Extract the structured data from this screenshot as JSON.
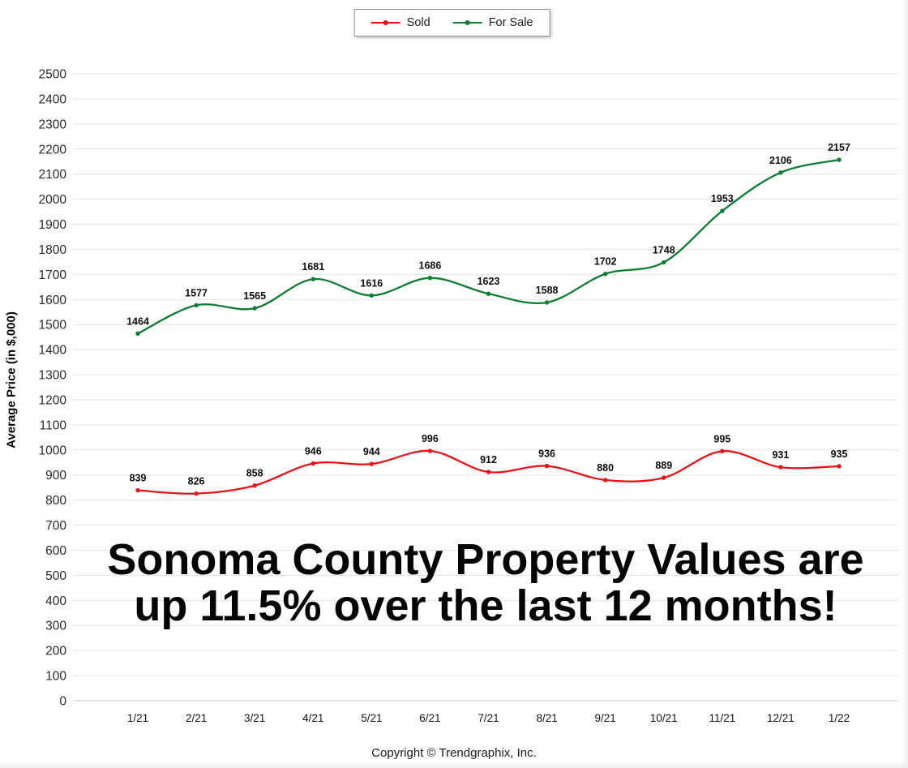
{
  "legend": {
    "items": [
      {
        "label": "Sold",
        "color": "#e8131a"
      },
      {
        "label": "For Sale",
        "color": "#0f7c33"
      }
    ]
  },
  "chart_data": {
    "type": "line",
    "categories": [
      "1/21",
      "2/21",
      "3/21",
      "4/21",
      "5/21",
      "6/21",
      "7/21",
      "8/21",
      "9/21",
      "10/21",
      "11/21",
      "12/21",
      "1/22"
    ],
    "series": [
      {
        "name": "Sold",
        "color": "#e8131a",
        "values": [
          839,
          826,
          858,
          946,
          944,
          996,
          912,
          936,
          880,
          889,
          995,
          931,
          935
        ]
      },
      {
        "name": "For Sale",
        "color": "#0f7c33",
        "values": [
          1464,
          1577,
          1565,
          1681,
          1616,
          1686,
          1623,
          1588,
          1702,
          1748,
          1953,
          2106,
          2157
        ]
      }
    ],
    "title": "",
    "xlabel": "",
    "ylabel": "Average Price (in $,000)",
    "ylim": [
      0,
      2500
    ],
    "ytick_step": 100,
    "grid": true,
    "legend_position": "top-center",
    "show_point_labels": true
  },
  "overlay": {
    "title_line1": "Sonoma County Property Values are",
    "title_line2": "up 11.5% over the last 12 months!"
  },
  "footer": {
    "copyright": "Copyright © Trendgraphix, Inc."
  }
}
